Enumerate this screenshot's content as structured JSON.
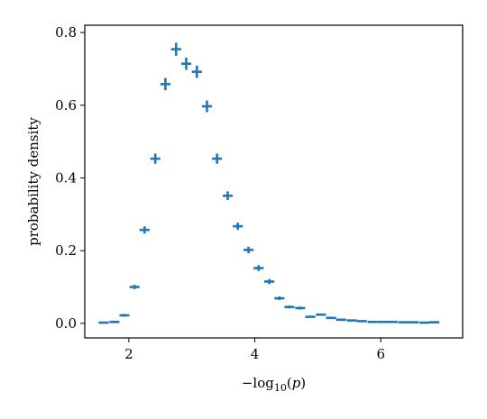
{
  "chart_data": {
    "type": "scatter",
    "title": "",
    "xlabel": "−log₁₀(p)",
    "ylabel": "probability density",
    "xlim": [
      1.3,
      7.3
    ],
    "ylim": [
      -0.04,
      0.82
    ],
    "xticks": [
      2,
      4,
      6
    ],
    "yticks": [
      0.0,
      0.2,
      0.4,
      0.6,
      0.8
    ],
    "ytick_labels": [
      "0.0",
      "0.2",
      "0.4",
      "0.6",
      "0.8"
    ],
    "grid": false,
    "legend": "none",
    "color": "#1f77b4",
    "marker": "error-bar cross (x-bin width, y uncertainty)",
    "bin_width": 0.16,
    "series": [
      {
        "x": [
          1.6,
          1.77,
          1.93,
          2.09,
          2.25,
          2.42,
          2.58,
          2.75,
          2.91,
          3.08,
          3.24,
          3.4,
          3.57,
          3.73,
          3.9,
          4.06,
          4.23,
          4.39,
          4.55,
          4.72,
          4.88,
          5.05,
          5.21,
          5.37,
          5.54,
          5.7,
          5.87,
          6.03,
          6.19,
          6.36,
          6.52,
          6.69,
          6.85
        ],
        "y": [
          0.002,
          0.004,
          0.022,
          0.1,
          0.257,
          0.453,
          0.658,
          0.754,
          0.714,
          0.692,
          0.597,
          0.453,
          0.351,
          0.267,
          0.202,
          0.152,
          0.115,
          0.069,
          0.045,
          0.042,
          0.018,
          0.024,
          0.015,
          0.01,
          0.008,
          0.006,
          0.004,
          0.004,
          0.004,
          0.003,
          0.003,
          0.002,
          0.003
        ],
        "yerr": [
          0.002,
          0.002,
          0.004,
          0.006,
          0.01,
          0.014,
          0.017,
          0.018,
          0.017,
          0.017,
          0.016,
          0.014,
          0.012,
          0.01,
          0.009,
          0.008,
          0.007,
          0.005,
          0.004,
          0.004,
          0.003,
          0.003,
          0.002,
          0.002,
          0.002,
          0.002,
          0.002,
          0.002,
          0.002,
          0.002,
          0.002,
          0.002,
          0.002
        ]
      }
    ]
  }
}
